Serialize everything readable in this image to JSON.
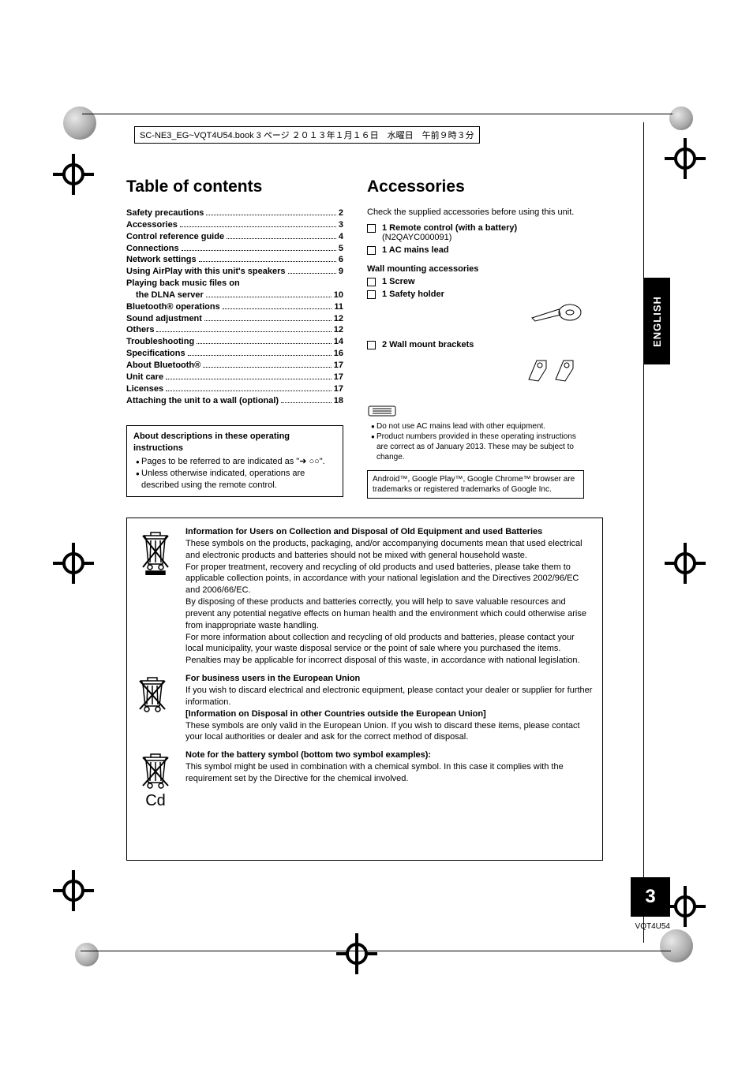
{
  "header_line": "SC-NE3_EG~VQT4U54.book  3 ページ  ２０１３年１月１６日　水曜日　午前９時３分",
  "toc": {
    "heading": "Table of contents",
    "items": [
      {
        "label": "Safety precautions",
        "page": "2"
      },
      {
        "label": "Accessories",
        "page": "3"
      },
      {
        "label": "Control reference guide",
        "page": "4"
      },
      {
        "label": "Connections",
        "page": "5"
      },
      {
        "label": "Network settings",
        "page": "6"
      },
      {
        "label": "Using AirPlay with this unit's speakers",
        "page": "9"
      },
      {
        "label": "Playing back music files on",
        "page": ""
      },
      {
        "label": "the DLNA server",
        "page": "10",
        "indent": true
      },
      {
        "label": "Bluetooth® operations",
        "page": "11"
      },
      {
        "label": "Sound adjustment",
        "page": "12"
      },
      {
        "label": "Others",
        "page": "12"
      },
      {
        "label": "Troubleshooting",
        "page": "14"
      },
      {
        "label": "Specifications",
        "page": "16"
      },
      {
        "label": "About Bluetooth®",
        "page": "17"
      },
      {
        "label": "Unit care",
        "page": "17"
      },
      {
        "label": "Licenses",
        "page": "17"
      },
      {
        "label": "Attaching the unit to a wall (optional)",
        "page": "18"
      }
    ]
  },
  "about_box": {
    "title": "About descriptions in these operating instructions",
    "bullet1": "Pages to be referred to are indicated as \"➜ ○○\".",
    "bullet2": "Unless otherwise indicated, operations are described using the remote control."
  },
  "accessories": {
    "heading": "Accessories",
    "intro": "Check the supplied accessories before using this unit.",
    "remote": {
      "label": "1 Remote control (with a battery)",
      "model": "(N2QAYC000091)"
    },
    "mains": "1 AC mains lead",
    "wall_head": "Wall mounting accessories",
    "screw": "1 Screw",
    "holder": "1 Safety holder",
    "brackets": "2 Wall mount brackets"
  },
  "notes": {
    "bullet1": "Do not use AC mains lead with other equipment.",
    "bullet2": "Product numbers provided in these operating instructions are correct as of January 2013. These may be subject to change."
  },
  "trademarks": "Android™, Google Play™, Google Chrome™ browser are trademarks or registered trademarks of Google Inc.",
  "disposal": {
    "head1": "Information for Users on Collection and Disposal of Old Equipment and used Batteries",
    "p1": "These symbols on the products, packaging, and/or accompanying documents mean that used electrical and electronic products and batteries should not be mixed with general household waste.",
    "p2": "For proper treatment, recovery and recycling of old products and used batteries, please take them to applicable collection points, in accordance with your national legislation and the Directives 2002/96/EC and 2006/66/EC.",
    "p3": "By disposing of these products and batteries correctly, you will help to save valuable resources and prevent any potential negative effects on human health and the environment which could otherwise arise from inappropriate waste handling.",
    "p4": "For more information about collection and recycling of old products and batteries, please contact your local municipality, your waste disposal service or the point of sale where you purchased the items.",
    "p5": "Penalties may be applicable for incorrect disposal of this waste, in accordance with national legislation.",
    "head2": "For business users in the European Union",
    "p6": "If you wish to discard electrical and electronic equipment, please contact your dealer or supplier for further information.",
    "head3": "[Information on Disposal in other Countries outside the European Union]",
    "p7": "These symbols are only valid in the European Union. If you wish to discard these items, please contact your local authorities or dealer and ask for the correct method of disposal.",
    "head4": "Note for the battery symbol (bottom two symbol examples):",
    "p8": "This symbol might be used in combination with a chemical symbol. In this case it complies with the requirement set by the Directive for the chemical involved.",
    "cd_label": "Cd"
  },
  "lang_tab": "ENGLISH",
  "page_number": "3",
  "footer_code": "VQT4U54"
}
